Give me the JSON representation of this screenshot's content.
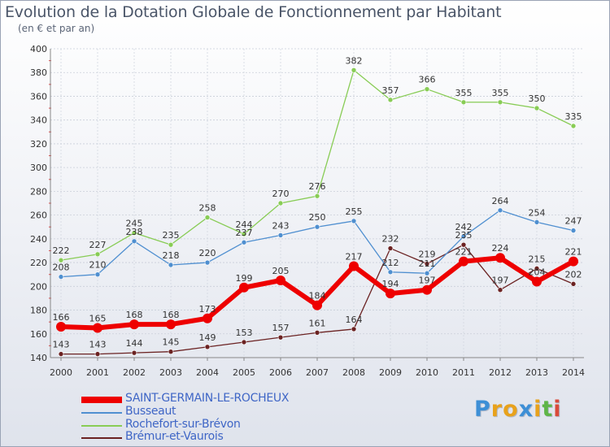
{
  "title": "Evolution de la Dotation Globale de Fonctionnement par Habitant",
  "subtitle": "(en € et par an)",
  "logo": {
    "text": "Proxiti",
    "colors": [
      "#3d8fd6",
      "#e8a21c",
      "#e8a21c",
      "#3d8fd6",
      "#e8a21c",
      "#5fb548",
      "#d94a3a"
    ]
  },
  "chart_data": {
    "type": "line",
    "title": "Evolution de la Dotation Globale de Fonctionnement par Habitant",
    "subtitle": "(en € et par an)",
    "xlabel": "",
    "ylabel": "",
    "x": [
      "2000",
      "2001",
      "2002",
      "2003",
      "2004",
      "2005",
      "2006",
      "2007",
      "2008",
      "2009",
      "2010",
      "2011",
      "2012",
      "2013",
      "2014"
    ],
    "ylim": [
      140,
      400
    ],
    "yticks": [
      140,
      160,
      180,
      200,
      220,
      240,
      260,
      280,
      300,
      320,
      340,
      360,
      380,
      400
    ],
    "grid": true,
    "legend_position": "bottom-left",
    "series": [
      {
        "name": "SAINT-GERMAIN-LE-ROCHEUX",
        "color": "#ee0000",
        "width": 6,
        "values": [
          166,
          165,
          168,
          168,
          173,
          199,
          205,
          184,
          217,
          194,
          197,
          221,
          224,
          204,
          221
        ],
        "labels": [
          "166",
          "165",
          "168",
          "168",
          "173",
          "199",
          "205",
          "184",
          "217",
          "194",
          "197",
          "221",
          "224",
          "204",
          "221"
        ]
      },
      {
        "name": "Busseaut",
        "color": "#4f8fd0",
        "width": 1.3,
        "values": [
          208,
          210,
          238,
          218,
          220,
          237,
          243,
          250,
          255,
          212,
          211,
          242,
          264,
          254,
          247
        ],
        "labels": [
          "208",
          "210",
          "238",
          "218",
          "220",
          "237",
          "243",
          "250",
          "255",
          "212",
          "211",
          "242",
          "264",
          "254",
          "247"
        ]
      },
      {
        "name": "Rochefort-sur-Brévon",
        "color": "#88cc55",
        "width": 1.3,
        "values": [
          222,
          227,
          245,
          235,
          258,
          244,
          270,
          276,
          382,
          357,
          366,
          355,
          355,
          350,
          335
        ],
        "labels": [
          "222",
          "227",
          "245",
          "235",
          "258",
          "244",
          "270",
          "276",
          "382",
          "357",
          "366",
          "355",
          "355",
          "350",
          "335"
        ]
      },
      {
        "name": "Brémur-et-Vaurois",
        "color": "#6b2222",
        "width": 1.3,
        "values": [
          143,
          143,
          144,
          145,
          149,
          153,
          157,
          161,
          164,
          232,
          219,
          235,
          197,
          215,
          202
        ],
        "labels": [
          "143",
          "143",
          "144",
          "145",
          "149",
          "153",
          "157",
          "161",
          "164",
          "232",
          "219",
          "235",
          "197",
          "215",
          "202"
        ]
      }
    ]
  }
}
